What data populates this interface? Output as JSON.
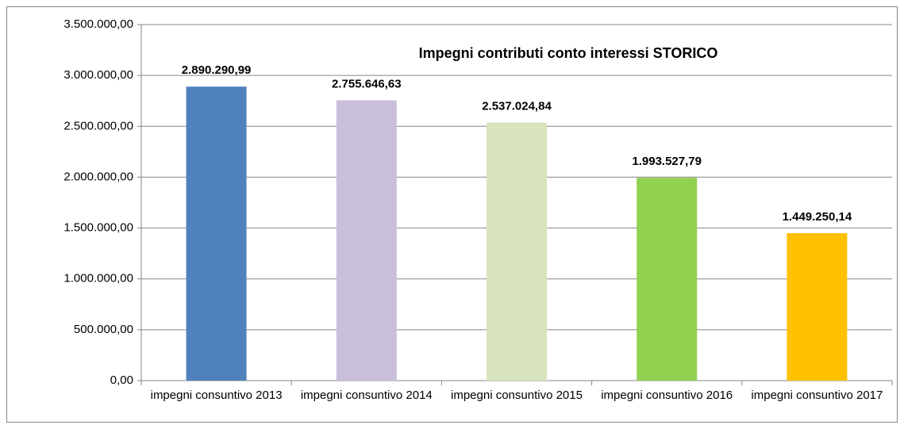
{
  "chart_data": {
    "type": "bar",
    "title": "Impegni contributi conto interessi STORICO",
    "categories": [
      "impegni consuntivo 2013",
      "impegni consuntivo 2014",
      "impegni consuntivo 2015",
      "impegni consuntivo 2016",
      "impegni consuntivo 2017"
    ],
    "values": [
      2890290.99,
      2755646.63,
      2537024.84,
      1993527.79,
      1449250.14
    ],
    "value_labels": [
      "2.890.290,99",
      "2.755.646,63",
      "2.537.024,84",
      "1.993.527,79",
      "1.449.250,14"
    ],
    "colors": [
      "#4f81bd",
      "#c9bfdc",
      "#d7e4bd",
      "#92d050",
      "#ffc000"
    ],
    "ylim": [
      0,
      3500000
    ],
    "yticks": [
      {
        "value": 0,
        "label": "0,00"
      },
      {
        "value": 500000,
        "label": "500.000,00"
      },
      {
        "value": 1000000,
        "label": "1.000.000,00"
      },
      {
        "value": 1500000,
        "label": "1.500.000,00"
      },
      {
        "value": 2000000,
        "label": "2.000.000,00"
      },
      {
        "value": 2500000,
        "label": "2.500.000,00"
      },
      {
        "value": 3000000,
        "label": "3.000.000,00"
      },
      {
        "value": 3500000,
        "label": "3.500.000,00"
      }
    ],
    "grid": true
  }
}
